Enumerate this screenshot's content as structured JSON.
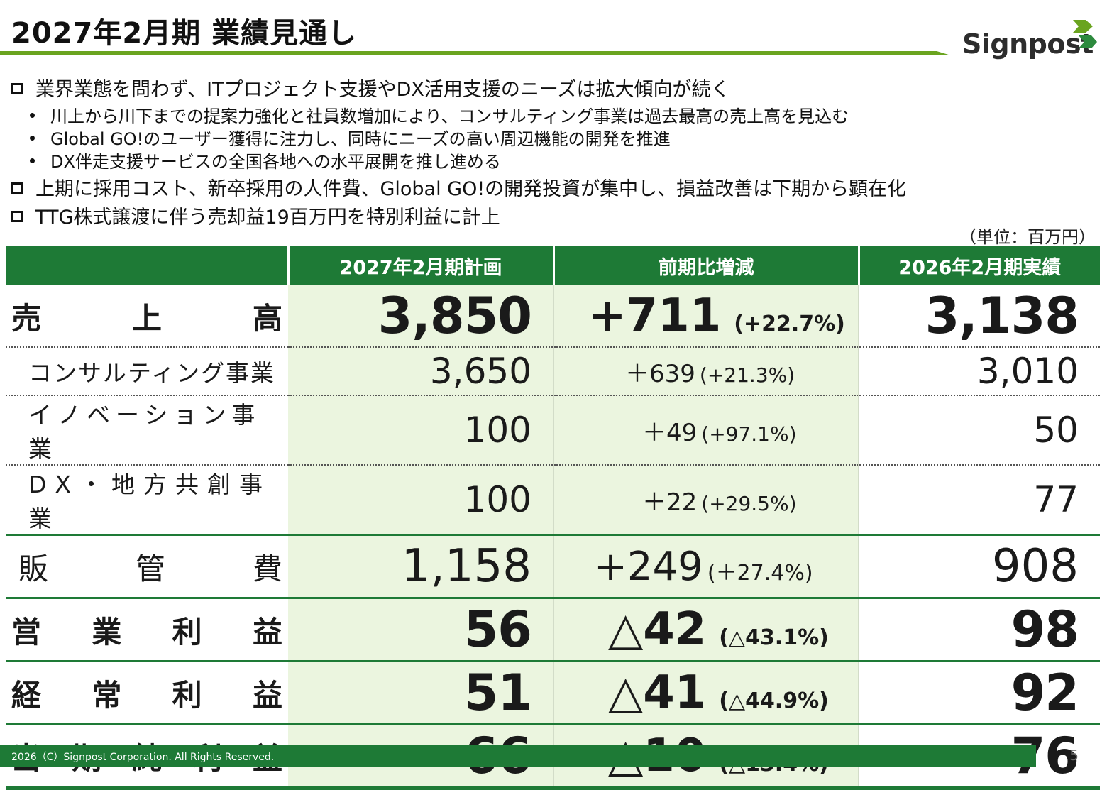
{
  "title": "2027年2月期 業績見通し",
  "logo": {
    "text": "Signpost"
  },
  "bullets": [
    {
      "text": "業界業態を問わず、ITプロジェクト支援やDX活用支援のニーズは拡大傾向が続く",
      "subs": [
        "川上から川下までの提案力強化と社員数増加により、コンサルティング事業は過去最高の売上高を見込む",
        "Global GO!のユーザー獲得に注力し、同時にニーズの高い周辺機能の開発を推進",
        "DX伴走支援サービスの全国各地への水平展開を推し進める"
      ]
    },
    {
      "text": "上期に採用コスト、新卒採用の人件費、Global GO!の開発投資が集中し、損益改善は下期から顕在化"
    },
    {
      "text": "TTG株式譲渡に伴う売却益19百万円を特別利益に計上"
    }
  ],
  "unit_note": "（単位：百万円）",
  "table": {
    "headers": [
      "",
      "2027年2月期計画",
      "前期比増減",
      "2026年2月期実績"
    ],
    "rows": [
      {
        "label_chars": [
          "売",
          "上",
          "高"
        ],
        "plan": "3,850",
        "diff": "+711",
        "pct": "(+22.7%)",
        "actual": "3,138"
      },
      {
        "label": "コンサルティング事業",
        "plan": "3,650",
        "diff": "＋639",
        "pct": "(+21.3%)",
        "actual": "3,010"
      },
      {
        "label": "イノベーション事業",
        "plan": "100",
        "diff": "＋49",
        "pct": "(+97.1%)",
        "actual": "50"
      },
      {
        "label": "DX・地方共創事業",
        "plan": "100",
        "diff": "＋22",
        "pct": "(+29.5%)",
        "actual": "77"
      },
      {
        "label_chars": [
          "販",
          "管",
          "費"
        ],
        "plan": "1,158",
        "diff": "+249",
        "pct": "(＋27.4%)",
        "actual": "908"
      },
      {
        "label_chars": [
          "営",
          "業",
          "利",
          "益"
        ],
        "plan": "56",
        "diff": "△42",
        "pct": "(△43.1%)",
        "actual": "98"
      },
      {
        "label_chars": [
          "経",
          "常",
          "利",
          "益"
        ],
        "plan": "51",
        "diff": "△41",
        "pct": "(△44.9%)",
        "actual": "92"
      },
      {
        "label_chars": [
          "当",
          "期",
          "純",
          "利",
          "益"
        ],
        "plan": "66",
        "diff": "△10",
        "pct": "(△13.4%)",
        "actual": "76"
      }
    ]
  },
  "footer": {
    "copyright": "2026（C）Signpost Corporation. All Rights Reserved.",
    "page": "5"
  },
  "colors": {
    "brand_green": "#1e7a36",
    "accent_lime": "#6aa41f",
    "cell_highlight": "#ebf5df"
  }
}
